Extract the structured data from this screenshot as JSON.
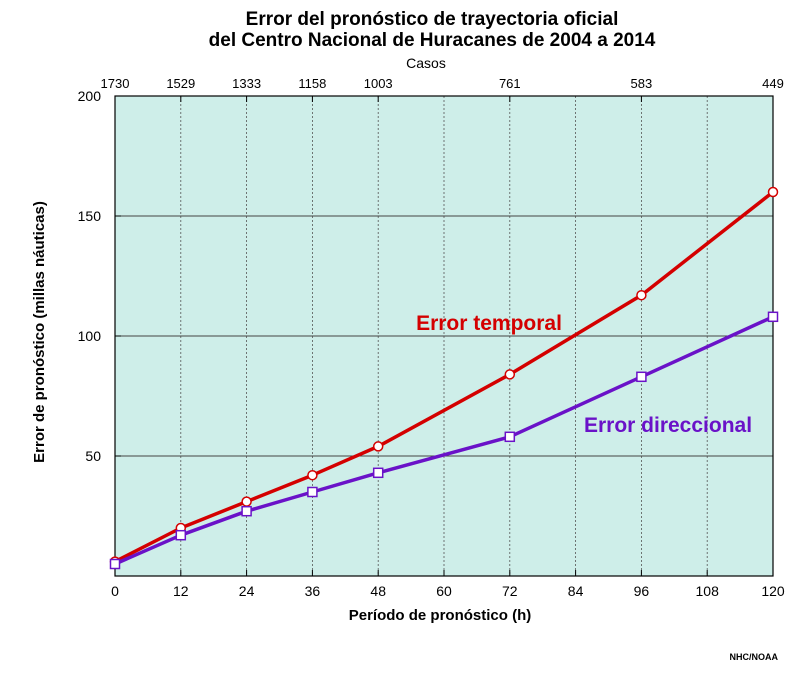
{
  "chart_data": {
    "type": "line",
    "title_lines": [
      "Error del pronóstico de trayectoria oficial",
      "del Centro Nacional de Huracanes de 2004 a 2014"
    ],
    "xlabel": "Período de pronóstico (h)",
    "ylabel": "Error de pronóstico (millas náuticas)",
    "xlim": [
      0,
      120
    ],
    "ylim": [
      0,
      200
    ],
    "x_ticks": [
      0,
      12,
      24,
      36,
      48,
      60,
      72,
      84,
      96,
      108,
      120
    ],
    "y_ticks": [
      50,
      100,
      150,
      200
    ],
    "grid": true,
    "background_color": "#ceeee9",
    "top_axis": {
      "title": "Casos",
      "positions": [
        0,
        12,
        24,
        36,
        48,
        72,
        96,
        120
      ],
      "labels": [
        "1730",
        "1529",
        "1333",
        "1158",
        "1003",
        "761",
        "583",
        "449"
      ]
    },
    "x": [
      0,
      12,
      24,
      36,
      48,
      72,
      96,
      120
    ],
    "series": [
      {
        "name": "Error temporal",
        "color": "#d40000",
        "marker": "circle",
        "values": [
          6,
          20,
          31,
          42,
          54,
          84,
          117,
          160
        ]
      },
      {
        "name": "Error direccional",
        "color": "#6a12c8",
        "marker": "square",
        "values": [
          5,
          17,
          27,
          35,
          43,
          58,
          83,
          108
        ]
      }
    ],
    "credit": "NHC/NOAA"
  }
}
